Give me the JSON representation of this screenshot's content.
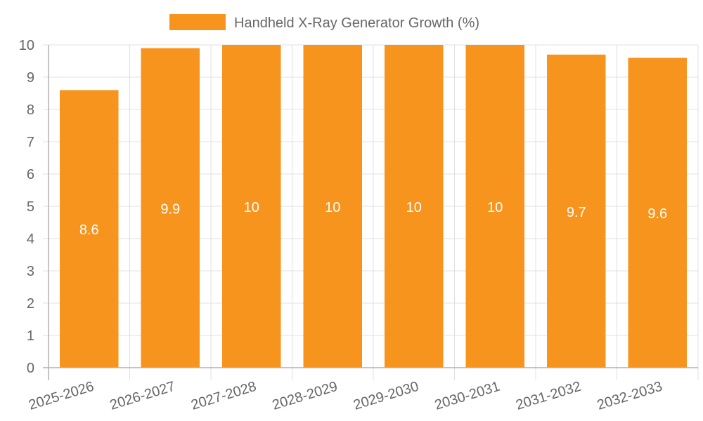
{
  "chart_data": {
    "type": "bar",
    "title": "",
    "legend": {
      "label": "Handheld X-Ray Generator Growth (%)",
      "position": "top"
    },
    "categories": [
      "2025-2026",
      "2026-2027",
      "2027-2028",
      "2028-2029",
      "2029-2030",
      "2030-2031",
      "2031-2032",
      "2032-2033"
    ],
    "series": [
      {
        "name": "Handheld X-Ray Generator Growth (%)",
        "values": [
          8.6,
          9.9,
          10,
          10,
          10,
          10,
          9.7,
          9.6
        ],
        "color": "#f7941e"
      }
    ],
    "data_labels": [
      "8.6",
      "9.9",
      "10",
      "10",
      "10",
      "10",
      "9.7",
      "9.6"
    ],
    "ylim": [
      0,
      10
    ],
    "yticks": [
      "0",
      "1",
      "2",
      "3",
      "4",
      "5",
      "6",
      "7",
      "8",
      "9",
      "10"
    ],
    "xlabel": "",
    "ylabel": "",
    "grid": true
  }
}
